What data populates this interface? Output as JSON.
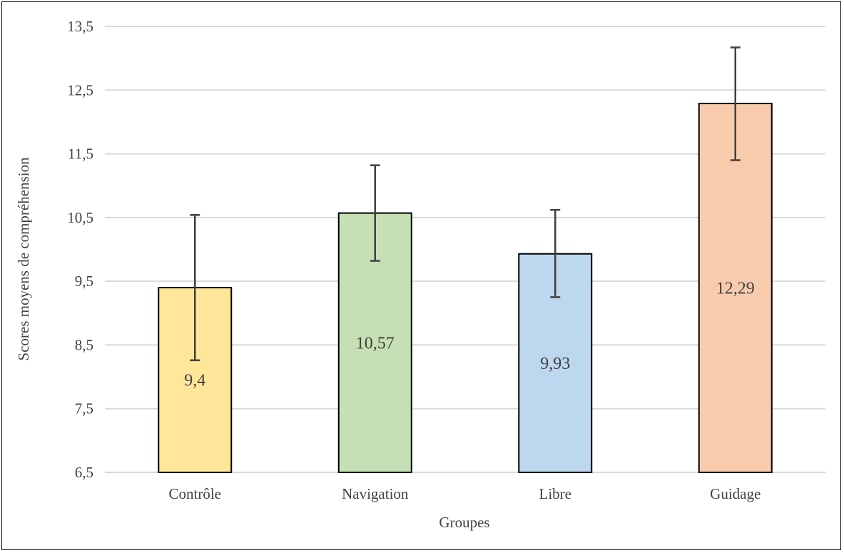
{
  "chart_data": {
    "type": "bar",
    "title": "",
    "xlabel": "Groupes",
    "ylabel": "Scores moyens de compréhension",
    "categories": [
      "Contrôle",
      "Navigation",
      "Libre",
      "Guidage"
    ],
    "values": [
      9.4,
      10.57,
      9.93,
      12.29
    ],
    "value_labels": [
      "9,4",
      "10,57",
      "9,93",
      "12,29"
    ],
    "error_low": [
      8.26,
      9.82,
      9.25,
      11.4
    ],
    "error_high": [
      10.54,
      11.32,
      10.62,
      13.17
    ],
    "ylim": [
      6.5,
      13.5
    ],
    "yticks": [
      6.5,
      7.5,
      8.5,
      9.5,
      10.5,
      11.5,
      12.5,
      13.5
    ],
    "ytick_labels": [
      "6,5",
      "7,5",
      "8,5",
      "9,5",
      "10,5",
      "11,5",
      "12,5",
      "13,5"
    ],
    "grid": true,
    "legend": "none",
    "colors": [
      "#FFE699",
      "#C5E0B4",
      "#BDD7EE",
      "#F8CBAD"
    ],
    "bar_edge_color": "#000000",
    "error_bar_color": "#404040",
    "gridline_color": "#D9D9D9"
  }
}
